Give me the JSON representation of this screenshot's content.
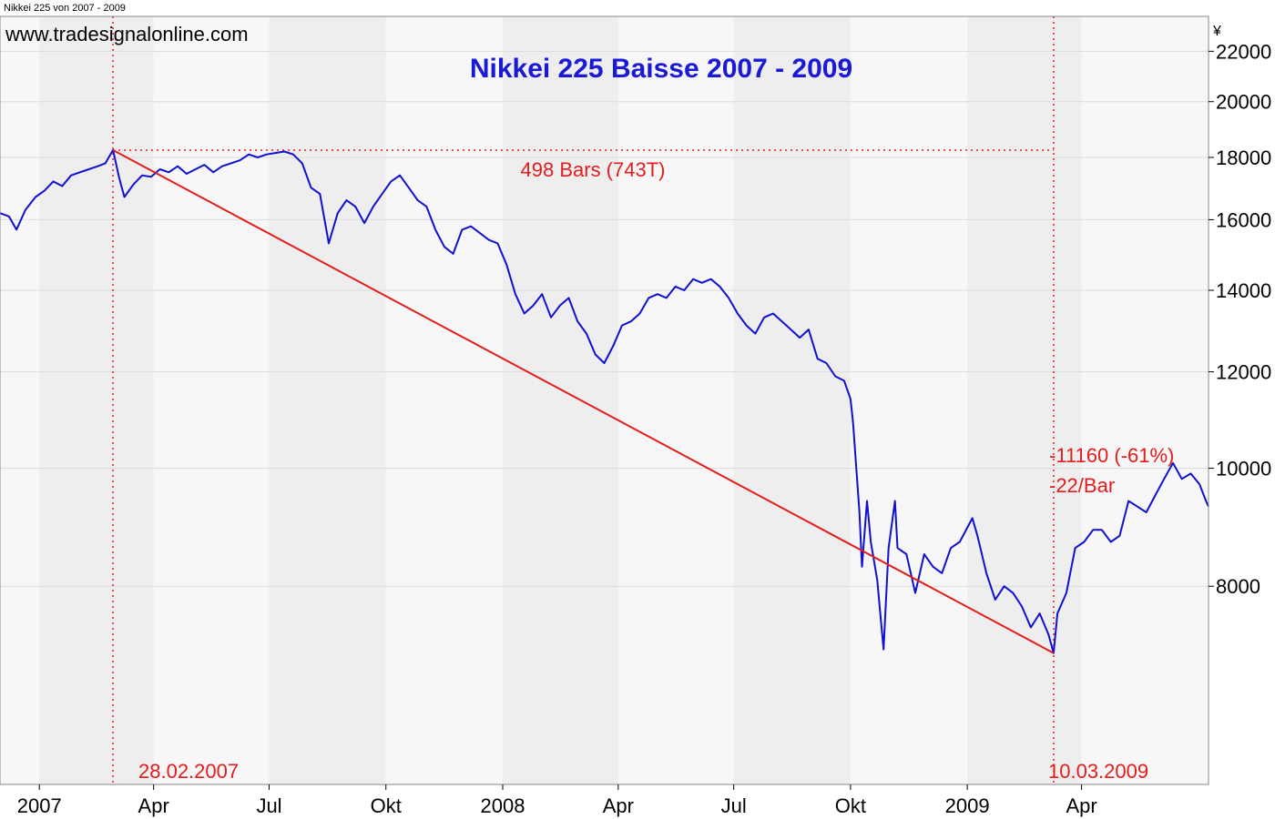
{
  "window_title": "Nikkei 225 von 2007 - 2009",
  "watermark": "www.tradesignalonline.com",
  "colors": {
    "price_line": "#1010d0",
    "annotation": "#e51c1c",
    "title": "#1a1ad6",
    "band_light": "#f7f7f7",
    "band_dark": "#eeeeee",
    "grid": "#dcdcdc"
  },
  "chart_data": {
    "type": "line",
    "title": "Nikkei 225 Baisse 2007 - 2009",
    "ylabel": "¥",
    "xlabel": "",
    "y_scale": "log",
    "ylim": [
      5500,
      23500
    ],
    "xlim": [
      "2006-12-01",
      "2009-07-10"
    ],
    "grid": true,
    "x_ticks": [
      {
        "date": "2007-01-01",
        "label": "2007"
      },
      {
        "date": "2007-04-01",
        "label": "Apr"
      },
      {
        "date": "2007-07-01",
        "label": "Jul"
      },
      {
        "date": "2007-10-01",
        "label": "Okt"
      },
      {
        "date": "2008-01-01",
        "label": "2008"
      },
      {
        "date": "2008-04-01",
        "label": "Apr"
      },
      {
        "date": "2008-07-01",
        "label": "Jul"
      },
      {
        "date": "2008-10-01",
        "label": "Okt"
      },
      {
        "date": "2009-01-01",
        "label": "2009"
      },
      {
        "date": "2009-04-01",
        "label": "Apr"
      }
    ],
    "y_ticks": [
      8000,
      10000,
      12000,
      14000,
      16000,
      18000,
      20000,
      22000
    ],
    "series": [
      {
        "values": [
          [
            "2006-12-01",
            16200
          ],
          [
            "2006-12-08",
            16100
          ],
          [
            "2006-12-14",
            15700
          ],
          [
            "2006-12-21",
            16300
          ],
          [
            "2006-12-29",
            16700
          ],
          [
            "2007-01-05",
            16900
          ],
          [
            "2007-01-12",
            17200
          ],
          [
            "2007-01-19",
            17050
          ],
          [
            "2007-01-26",
            17400
          ],
          [
            "2007-02-02",
            17500
          ],
          [
            "2007-02-09",
            17600
          ],
          [
            "2007-02-16",
            17700
          ],
          [
            "2007-02-22",
            17800
          ],
          [
            "2007-02-28",
            18250
          ],
          [
            "2007-03-05",
            17300
          ],
          [
            "2007-03-09",
            16700
          ],
          [
            "2007-03-16",
            17100
          ],
          [
            "2007-03-23",
            17400
          ],
          [
            "2007-03-30",
            17350
          ],
          [
            "2007-04-06",
            17600
          ],
          [
            "2007-04-13",
            17500
          ],
          [
            "2007-04-20",
            17700
          ],
          [
            "2007-04-27",
            17450
          ],
          [
            "2007-05-04",
            17600
          ],
          [
            "2007-05-11",
            17750
          ],
          [
            "2007-05-18",
            17500
          ],
          [
            "2007-05-25",
            17700
          ],
          [
            "2007-06-01",
            17800
          ],
          [
            "2007-06-08",
            17900
          ],
          [
            "2007-06-15",
            18100
          ],
          [
            "2007-06-22",
            18000
          ],
          [
            "2007-06-29",
            18100
          ],
          [
            "2007-07-06",
            18150
          ],
          [
            "2007-07-13",
            18200
          ],
          [
            "2007-07-20",
            18100
          ],
          [
            "2007-07-27",
            17800
          ],
          [
            "2007-08-03",
            17000
          ],
          [
            "2007-08-10",
            16800
          ],
          [
            "2007-08-17",
            15300
          ],
          [
            "2007-08-24",
            16200
          ],
          [
            "2007-08-31",
            16600
          ],
          [
            "2007-09-07",
            16400
          ],
          [
            "2007-09-14",
            15900
          ],
          [
            "2007-09-21",
            16400
          ],
          [
            "2007-09-28",
            16800
          ],
          [
            "2007-10-05",
            17200
          ],
          [
            "2007-10-12",
            17400
          ],
          [
            "2007-10-19",
            17000
          ],
          [
            "2007-10-26",
            16600
          ],
          [
            "2007-11-02",
            16400
          ],
          [
            "2007-11-09",
            15700
          ],
          [
            "2007-11-16",
            15200
          ],
          [
            "2007-11-23",
            15000
          ],
          [
            "2007-11-30",
            15700
          ],
          [
            "2007-12-07",
            15800
          ],
          [
            "2007-12-14",
            15600
          ],
          [
            "2007-12-21",
            15400
          ],
          [
            "2007-12-28",
            15300
          ],
          [
            "2008-01-04",
            14700
          ],
          [
            "2008-01-11",
            13900
          ],
          [
            "2008-01-18",
            13400
          ],
          [
            "2008-01-25",
            13600
          ],
          [
            "2008-02-01",
            13900
          ],
          [
            "2008-02-08",
            13300
          ],
          [
            "2008-02-15",
            13600
          ],
          [
            "2008-02-22",
            13800
          ],
          [
            "2008-02-29",
            13200
          ],
          [
            "2008-03-07",
            12900
          ],
          [
            "2008-03-14",
            12400
          ],
          [
            "2008-03-21",
            12200
          ],
          [
            "2008-03-28",
            12600
          ],
          [
            "2008-04-04",
            13100
          ],
          [
            "2008-04-11",
            13200
          ],
          [
            "2008-04-18",
            13400
          ],
          [
            "2008-04-25",
            13800
          ],
          [
            "2008-05-02",
            13900
          ],
          [
            "2008-05-09",
            13800
          ],
          [
            "2008-05-16",
            14100
          ],
          [
            "2008-05-23",
            14000
          ],
          [
            "2008-05-30",
            14300
          ],
          [
            "2008-06-06",
            14200
          ],
          [
            "2008-06-13",
            14300
          ],
          [
            "2008-06-20",
            14100
          ],
          [
            "2008-06-27",
            13800
          ],
          [
            "2008-07-04",
            13400
          ],
          [
            "2008-07-11",
            13100
          ],
          [
            "2008-07-18",
            12900
          ],
          [
            "2008-07-25",
            13300
          ],
          [
            "2008-08-01",
            13400
          ],
          [
            "2008-08-08",
            13200
          ],
          [
            "2008-08-15",
            13000
          ],
          [
            "2008-08-22",
            12800
          ],
          [
            "2008-08-29",
            13000
          ],
          [
            "2008-09-05",
            12300
          ],
          [
            "2008-09-12",
            12200
          ],
          [
            "2008-09-19",
            11900
          ],
          [
            "2008-09-26",
            11800
          ],
          [
            "2008-10-01",
            11400
          ],
          [
            "2008-10-03",
            10900
          ],
          [
            "2008-10-08",
            9200
          ],
          [
            "2008-10-10",
            8300
          ],
          [
            "2008-10-14",
            9400
          ],
          [
            "2008-10-17",
            8700
          ],
          [
            "2008-10-22",
            8100
          ],
          [
            "2008-10-27",
            7100
          ],
          [
            "2008-10-31",
            8600
          ],
          [
            "2008-11-05",
            9400
          ],
          [
            "2008-11-07",
            8600
          ],
          [
            "2008-11-14",
            8500
          ],
          [
            "2008-11-21",
            7900
          ],
          [
            "2008-11-28",
            8500
          ],
          [
            "2008-12-05",
            8300
          ],
          [
            "2008-12-12",
            8200
          ],
          [
            "2008-12-19",
            8600
          ],
          [
            "2008-12-26",
            8700
          ],
          [
            "2009-01-05",
            9100
          ],
          [
            "2009-01-09",
            8800
          ],
          [
            "2009-01-16",
            8200
          ],
          [
            "2009-01-23",
            7800
          ],
          [
            "2009-01-30",
            8000
          ],
          [
            "2009-02-06",
            7900
          ],
          [
            "2009-02-13",
            7700
          ],
          [
            "2009-02-20",
            7400
          ],
          [
            "2009-02-27",
            7600
          ],
          [
            "2009-03-06",
            7300
          ],
          [
            "2009-03-10",
            7050
          ],
          [
            "2009-03-13",
            7600
          ],
          [
            "2009-03-20",
            7900
          ],
          [
            "2009-03-27",
            8600
          ],
          [
            "2009-04-03",
            8700
          ],
          [
            "2009-04-10",
            8900
          ],
          [
            "2009-04-17",
            8900
          ],
          [
            "2009-04-24",
            8700
          ],
          [
            "2009-05-01",
            8800
          ],
          [
            "2009-05-08",
            9400
          ],
          [
            "2009-05-15",
            9300
          ],
          [
            "2009-05-22",
            9200
          ],
          [
            "2009-05-29",
            9500
          ],
          [
            "2009-06-05",
            9800
          ],
          [
            "2009-06-12",
            10100
          ],
          [
            "2009-06-19",
            9800
          ],
          [
            "2009-06-26",
            9900
          ],
          [
            "2009-07-03",
            9700
          ],
          [
            "2009-07-08",
            9400
          ],
          [
            "2009-07-10",
            9300
          ]
        ]
      }
    ],
    "trendline": {
      "from": [
        "2007-02-28",
        18250
      ],
      "to": [
        "2009-03-10",
        7050
      ]
    },
    "annotations": {
      "start_date_label": "28.02.2007",
      "end_date_label": "10.03.2009",
      "bars_label": "498 Bars (743T)",
      "change_label": "-11160 (-61%)",
      "rate_label": "-22/Bar",
      "start_date": "2007-02-28",
      "end_date": "2009-03-10",
      "peak_value": 18250
    }
  }
}
